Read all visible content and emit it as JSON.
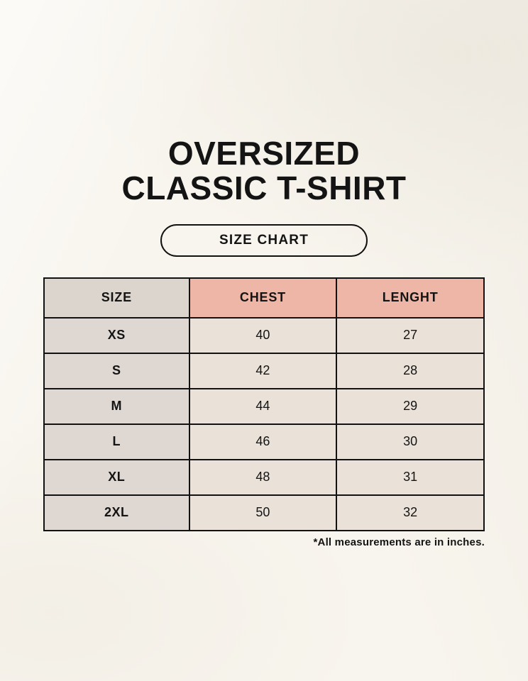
{
  "title": {
    "line1": "OVERSIZED",
    "line2": "CLASSIC T-SHIRT"
  },
  "size_chart_button": {
    "label": "SIZE CHART"
  },
  "table": {
    "columns": [
      "SIZE",
      "CHEST",
      "LENGHT"
    ],
    "rows": [
      {
        "size": "XS",
        "chest": "40",
        "lenght": "27"
      },
      {
        "size": "S",
        "chest": "42",
        "lenght": "28"
      },
      {
        "size": "M",
        "chest": "44",
        "lenght": "29"
      },
      {
        "size": "L",
        "chest": "46",
        "lenght": "30"
      },
      {
        "size": "XL",
        "chest": "48",
        "lenght": "31"
      },
      {
        "size": "2XL",
        "chest": "50",
        "lenght": "32"
      }
    ]
  },
  "footnote": "*All measurements are in inches.",
  "colors": {
    "bg": "#f8f5ee",
    "text": "#141414",
    "border": "#121212",
    "header_size_bg": "#dcd5cd",
    "header_measure_bg": "#eeb6a6",
    "row_size_bg": "#ded7d2",
    "row_value_bg": "#eae2d8"
  }
}
